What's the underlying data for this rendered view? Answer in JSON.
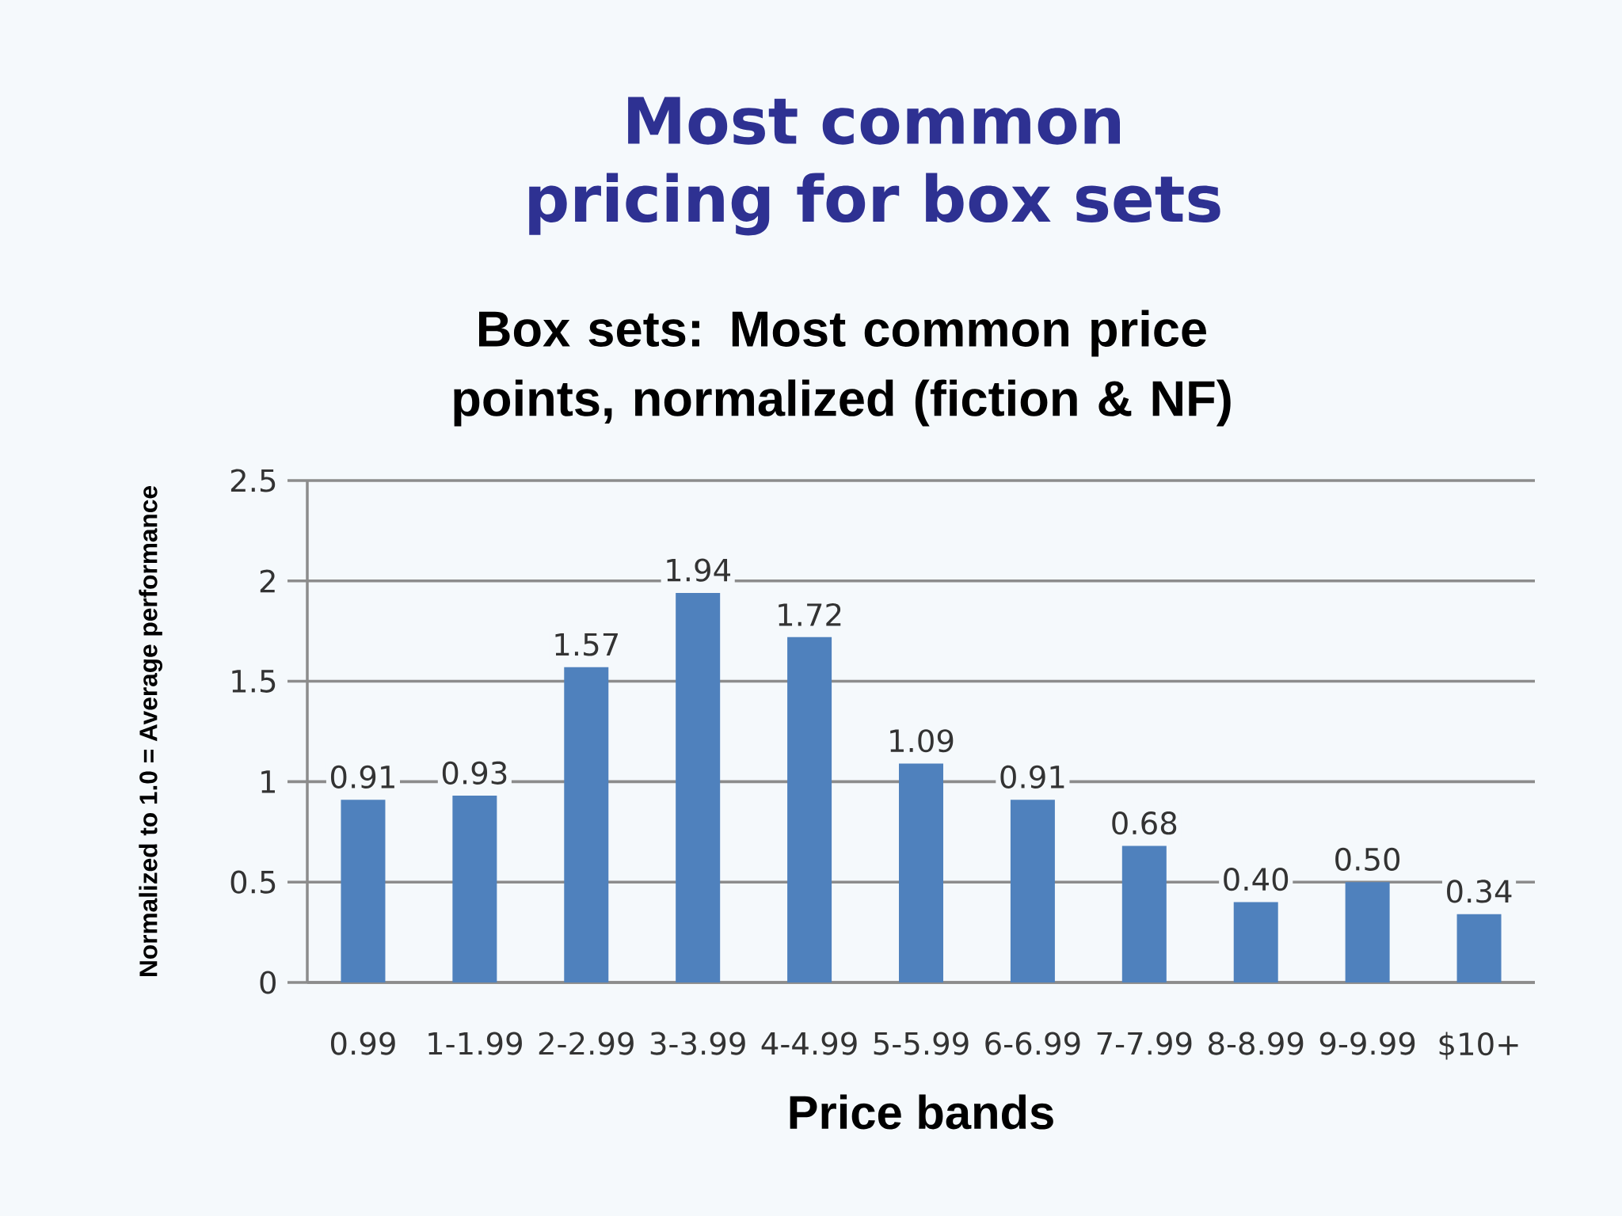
{
  "chart_data": {
    "type": "bar",
    "title": "Most common pricing for box sets",
    "subtitle": "Box sets:  Most common price points, normalized (fiction & NF)",
    "xlabel": "Price bands",
    "ylabel": "Normalized to 1.0 = Average performance",
    "categories": [
      "0.99",
      "1-1.99",
      "2-2.99",
      "3-3.99",
      "4-4.99",
      "5-5.99",
      "6-6.99",
      "7-7.99",
      "8-8.99",
      "9-9.99",
      "$10+"
    ],
    "values": [
      0.91,
      0.93,
      1.57,
      1.94,
      1.72,
      1.09,
      0.91,
      0.68,
      0.4,
      0.5,
      0.34
    ],
    "value_labels": [
      "0.91",
      "0.93",
      "1.57",
      "1.94",
      "1.72",
      "1.09",
      "0.91",
      "0.68",
      "0.40",
      "0.50",
      "0.34"
    ],
    "color": "#4f81bd",
    "ylim": [
      0,
      2.5
    ],
    "yticks": [
      0,
      0.5,
      1,
      1.5,
      2,
      2.5
    ],
    "grid": "y"
  }
}
